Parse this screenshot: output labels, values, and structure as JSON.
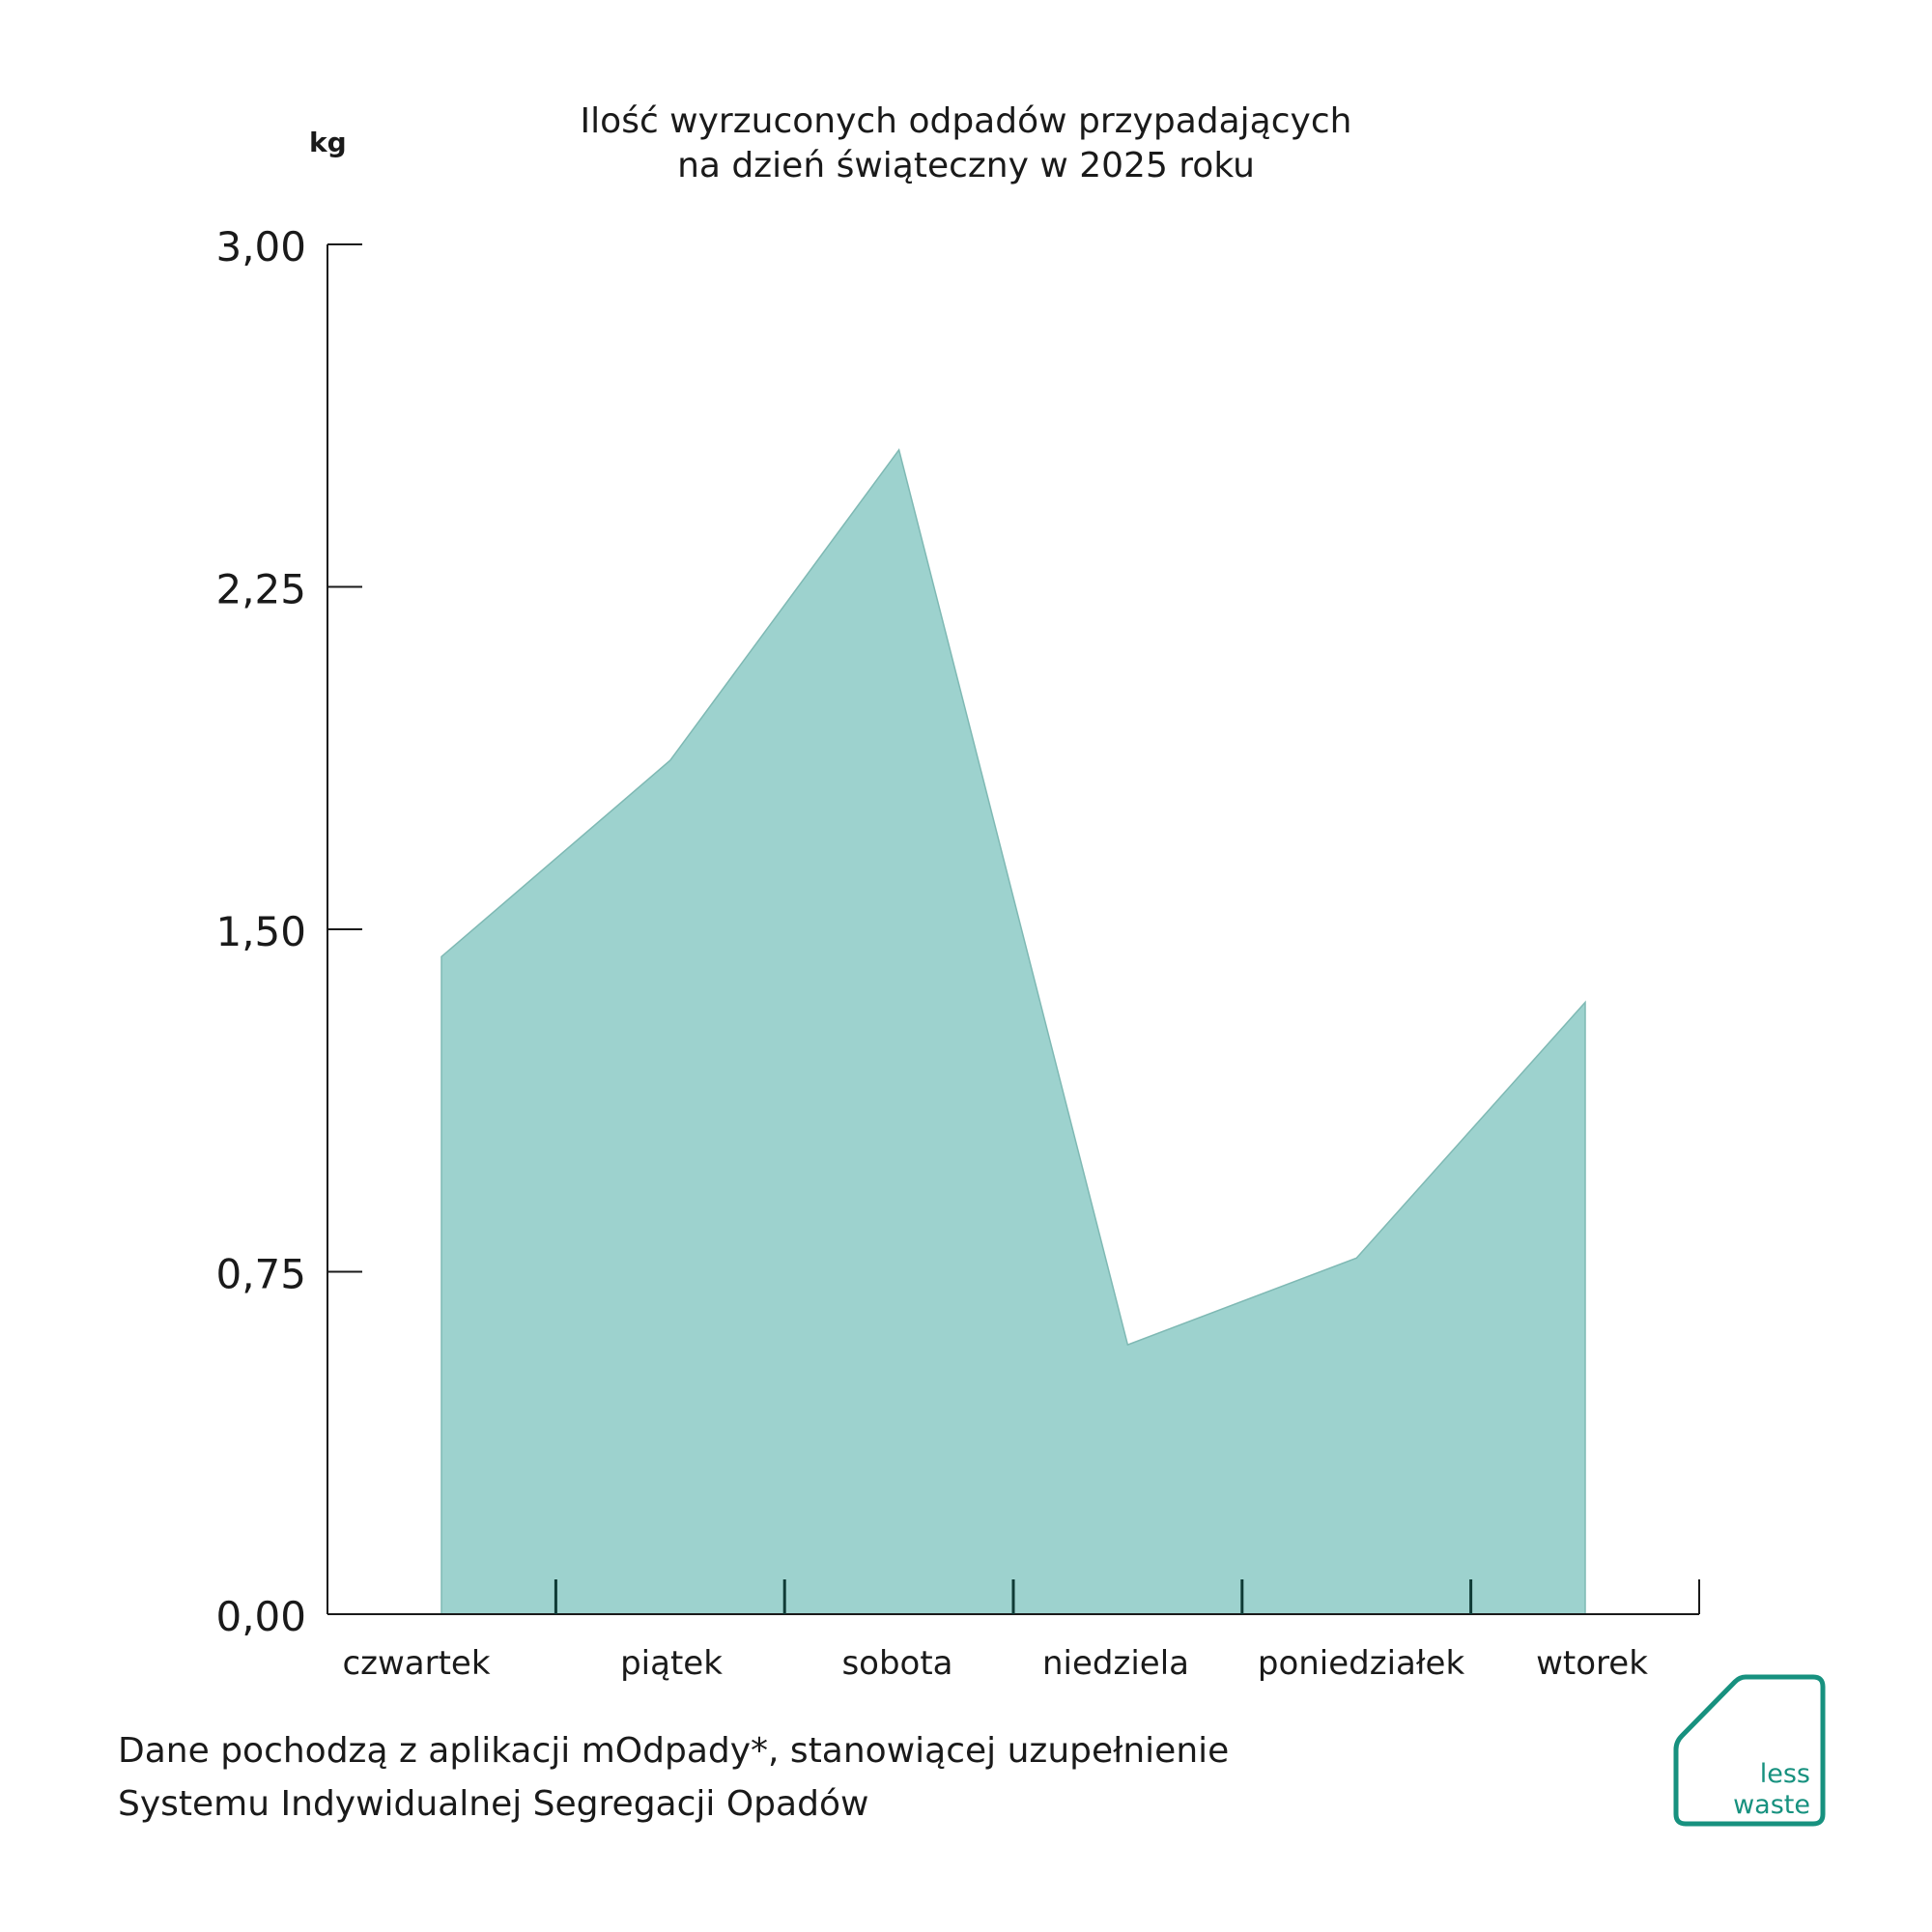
{
  "chart_data": {
    "type": "area",
    "title": [
      "Ilość wyrzuconych odpadów przypadających",
      "na dzień świąteczny w 2025 roku"
    ],
    "ylabel": "kg",
    "xlabel": "",
    "categories": [
      "czwartek",
      "piątek",
      "sobota",
      "niedziela",
      "poniedziałek",
      "wtorek"
    ],
    "series": [
      {
        "x": [
          0,
          1,
          2,
          3,
          4,
          5
        ],
        "values": [
          1.44,
          1.87,
          2.55,
          0.59,
          0.78,
          1.34
        ]
      }
    ],
    "ylim": [
      0,
      3
    ],
    "yticks": [
      "0,00",
      "0,75",
      "1,50",
      "2,25",
      "3,00"
    ],
    "ytick_values": [
      0,
      0.75,
      1.5,
      2.25,
      3.0
    ],
    "grid": false,
    "colors": {
      "fill": "#9dd2ce",
      "stroke": "#7fb9b4",
      "axis": "#1a1a1a",
      "tick": "#0f3b36"
    }
  },
  "footnote": {
    "line1": "Dane pochodzą z aplikacji mOdpady*, stanowiącej uzupełnienie",
    "line2": "Systemu Indywidualnej Segregacji Opadów"
  },
  "logo": {
    "line1": "less",
    "line2": "waste",
    "color": "#17917f"
  }
}
